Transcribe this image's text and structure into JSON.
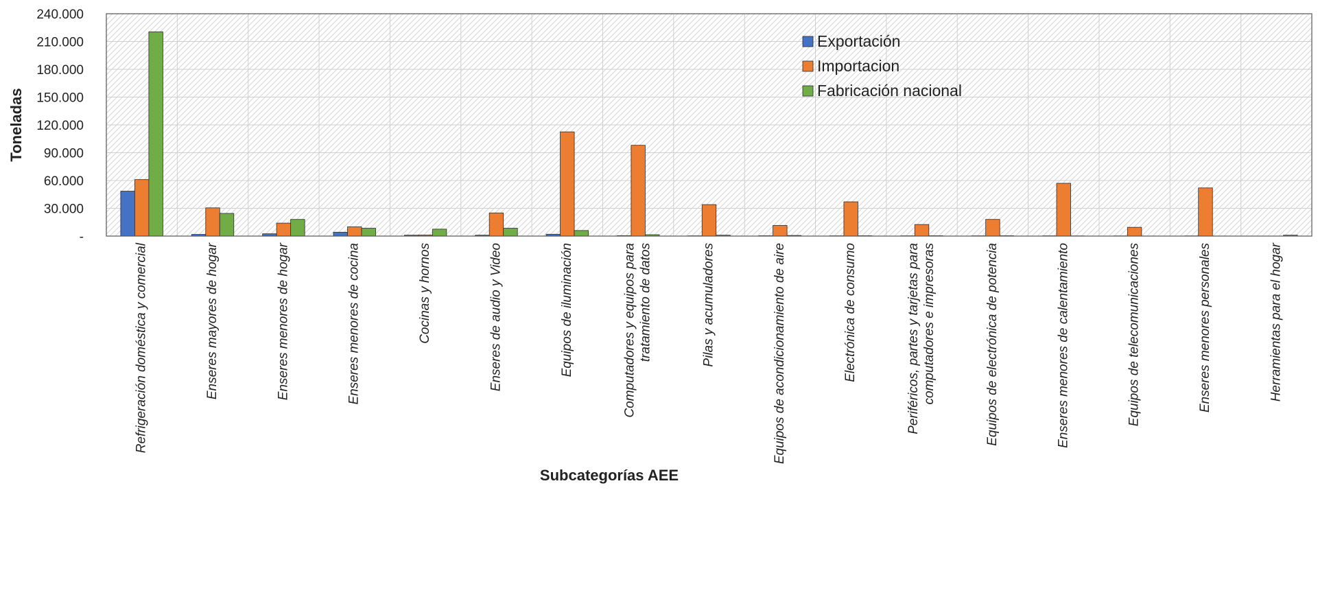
{
  "chart_data": {
    "type": "bar",
    "xlabel": "Subcategorías AEE",
    "ylabel": "Toneladas",
    "ylim": [
      0,
      240000
    ],
    "yticks": [
      0,
      30000,
      60000,
      90000,
      120000,
      150000,
      180000,
      210000,
      240000
    ],
    "ytick_labels": [
      "-",
      "30.000",
      "60.000",
      "90.000",
      "120.000",
      "150.000",
      "180.000",
      "210.000",
      "240.000"
    ],
    "grid": true,
    "legend_position": "top-right",
    "categories": [
      [
        "Refrigeración doméstica y comercial"
      ],
      [
        "Enseres mayores de hogar"
      ],
      [
        "Enseres menores de hogar"
      ],
      [
        "Enseres menores de cocina"
      ],
      [
        "Cocinas y hornos"
      ],
      [
        "Enseres de audio y Video"
      ],
      [
        "Equipos de iluminación"
      ],
      [
        "Computadores y equipos para",
        "tratamiento de datos"
      ],
      [
        "Pilas y acumuladores"
      ],
      [
        "Equipos de acondicionamiento de aire"
      ],
      [
        "Electrónica de consumo"
      ],
      [
        "Periféricos, partes y tarjetas para",
        "computadores e impresoras"
      ],
      [
        "Equipos de electrónica de potencia"
      ],
      [
        "Enseres menores de calentamiento"
      ],
      [
        "Equipos de telecomunicaciones"
      ],
      [
        "Enseres menores personales"
      ],
      [
        "Herramientas para el hogar"
      ]
    ],
    "series": [
      {
        "name": "Exportación",
        "color": "#4472C4",
        "values": [
          48500,
          1800,
          2500,
          4200,
          1000,
          1000,
          2000,
          500,
          300,
          400,
          300,
          300,
          300,
          300,
          200,
          200,
          0
        ]
      },
      {
        "name": "Importacion",
        "color": "#ED7D31",
        "values": [
          61000,
          30500,
          14000,
          10000,
          1200,
          25000,
          112500,
          98000,
          34000,
          11500,
          37000,
          12500,
          18000,
          57000,
          9500,
          52000,
          0
        ]
      },
      {
        "name": "Fabricación nacional",
        "color": "#70AD47",
        "values": [
          220500,
          24500,
          18000,
          8500,
          7500,
          8500,
          6000,
          1500,
          1000,
          700,
          400,
          400,
          400,
          200,
          100,
          100,
          1000
        ]
      }
    ]
  }
}
